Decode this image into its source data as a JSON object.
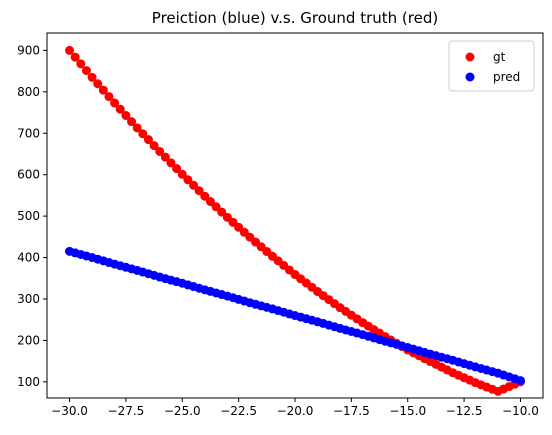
{
  "chart_data": {
    "type": "scatter",
    "title": "Preiction (blue) v.s. Ground truth (red)",
    "xlabel": "",
    "ylabel": "",
    "xlim": [
      -31.0,
      -9.0
    ],
    "ylim": [
      61,
      942
    ],
    "xticks": [
      -30.0,
      -27.5,
      -25.0,
      -22.5,
      -20.0,
      -17.5,
      -15.0,
      -12.5,
      -10.0
    ],
    "xtick_labels": [
      "−30.0",
      "−27.5",
      "−25.0",
      "−22.5",
      "−20.0",
      "−17.5",
      "−15.0",
      "−12.5",
      "−10.0"
    ],
    "yticks": [
      100,
      200,
      300,
      400,
      500,
      600,
      700,
      800,
      900
    ],
    "ytick_labels": [
      "100",
      "200",
      "300",
      "400",
      "500",
      "600",
      "700",
      "800",
      "900"
    ],
    "grid": false,
    "legend": "top-right",
    "series": [
      {
        "name": "gt",
        "color": "#ff0000",
        "x": [
          -30,
          -29,
          -28,
          -27,
          -26,
          -25,
          -24,
          -23,
          -22,
          -21,
          -20,
          -19,
          -18,
          -17,
          -16,
          -15,
          -14,
          -13,
          -12,
          -11,
          -10
        ],
        "y": [
          900,
          835,
          773,
          713,
          656,
          601,
          548,
          497,
          449,
          403,
          359,
          318,
          279,
          243,
          209,
          177,
          149,
          122,
          98,
          77,
          100
        ]
      },
      {
        "name": "pred",
        "color": "#0000ff",
        "x": [
          -30,
          -29,
          -28,
          -27,
          -26,
          -25,
          -24,
          -23,
          -22,
          -21,
          -20,
          -19,
          -18,
          -17,
          -16,
          -15,
          -14,
          -13,
          -12,
          -11,
          -10
        ],
        "y": [
          415,
          400,
          384,
          369,
          353,
          338,
          322,
          307,
          291,
          276,
          260,
          245,
          229,
          214,
          198,
          183,
          167,
          152,
          136,
          121,
          103
        ]
      }
    ]
  }
}
